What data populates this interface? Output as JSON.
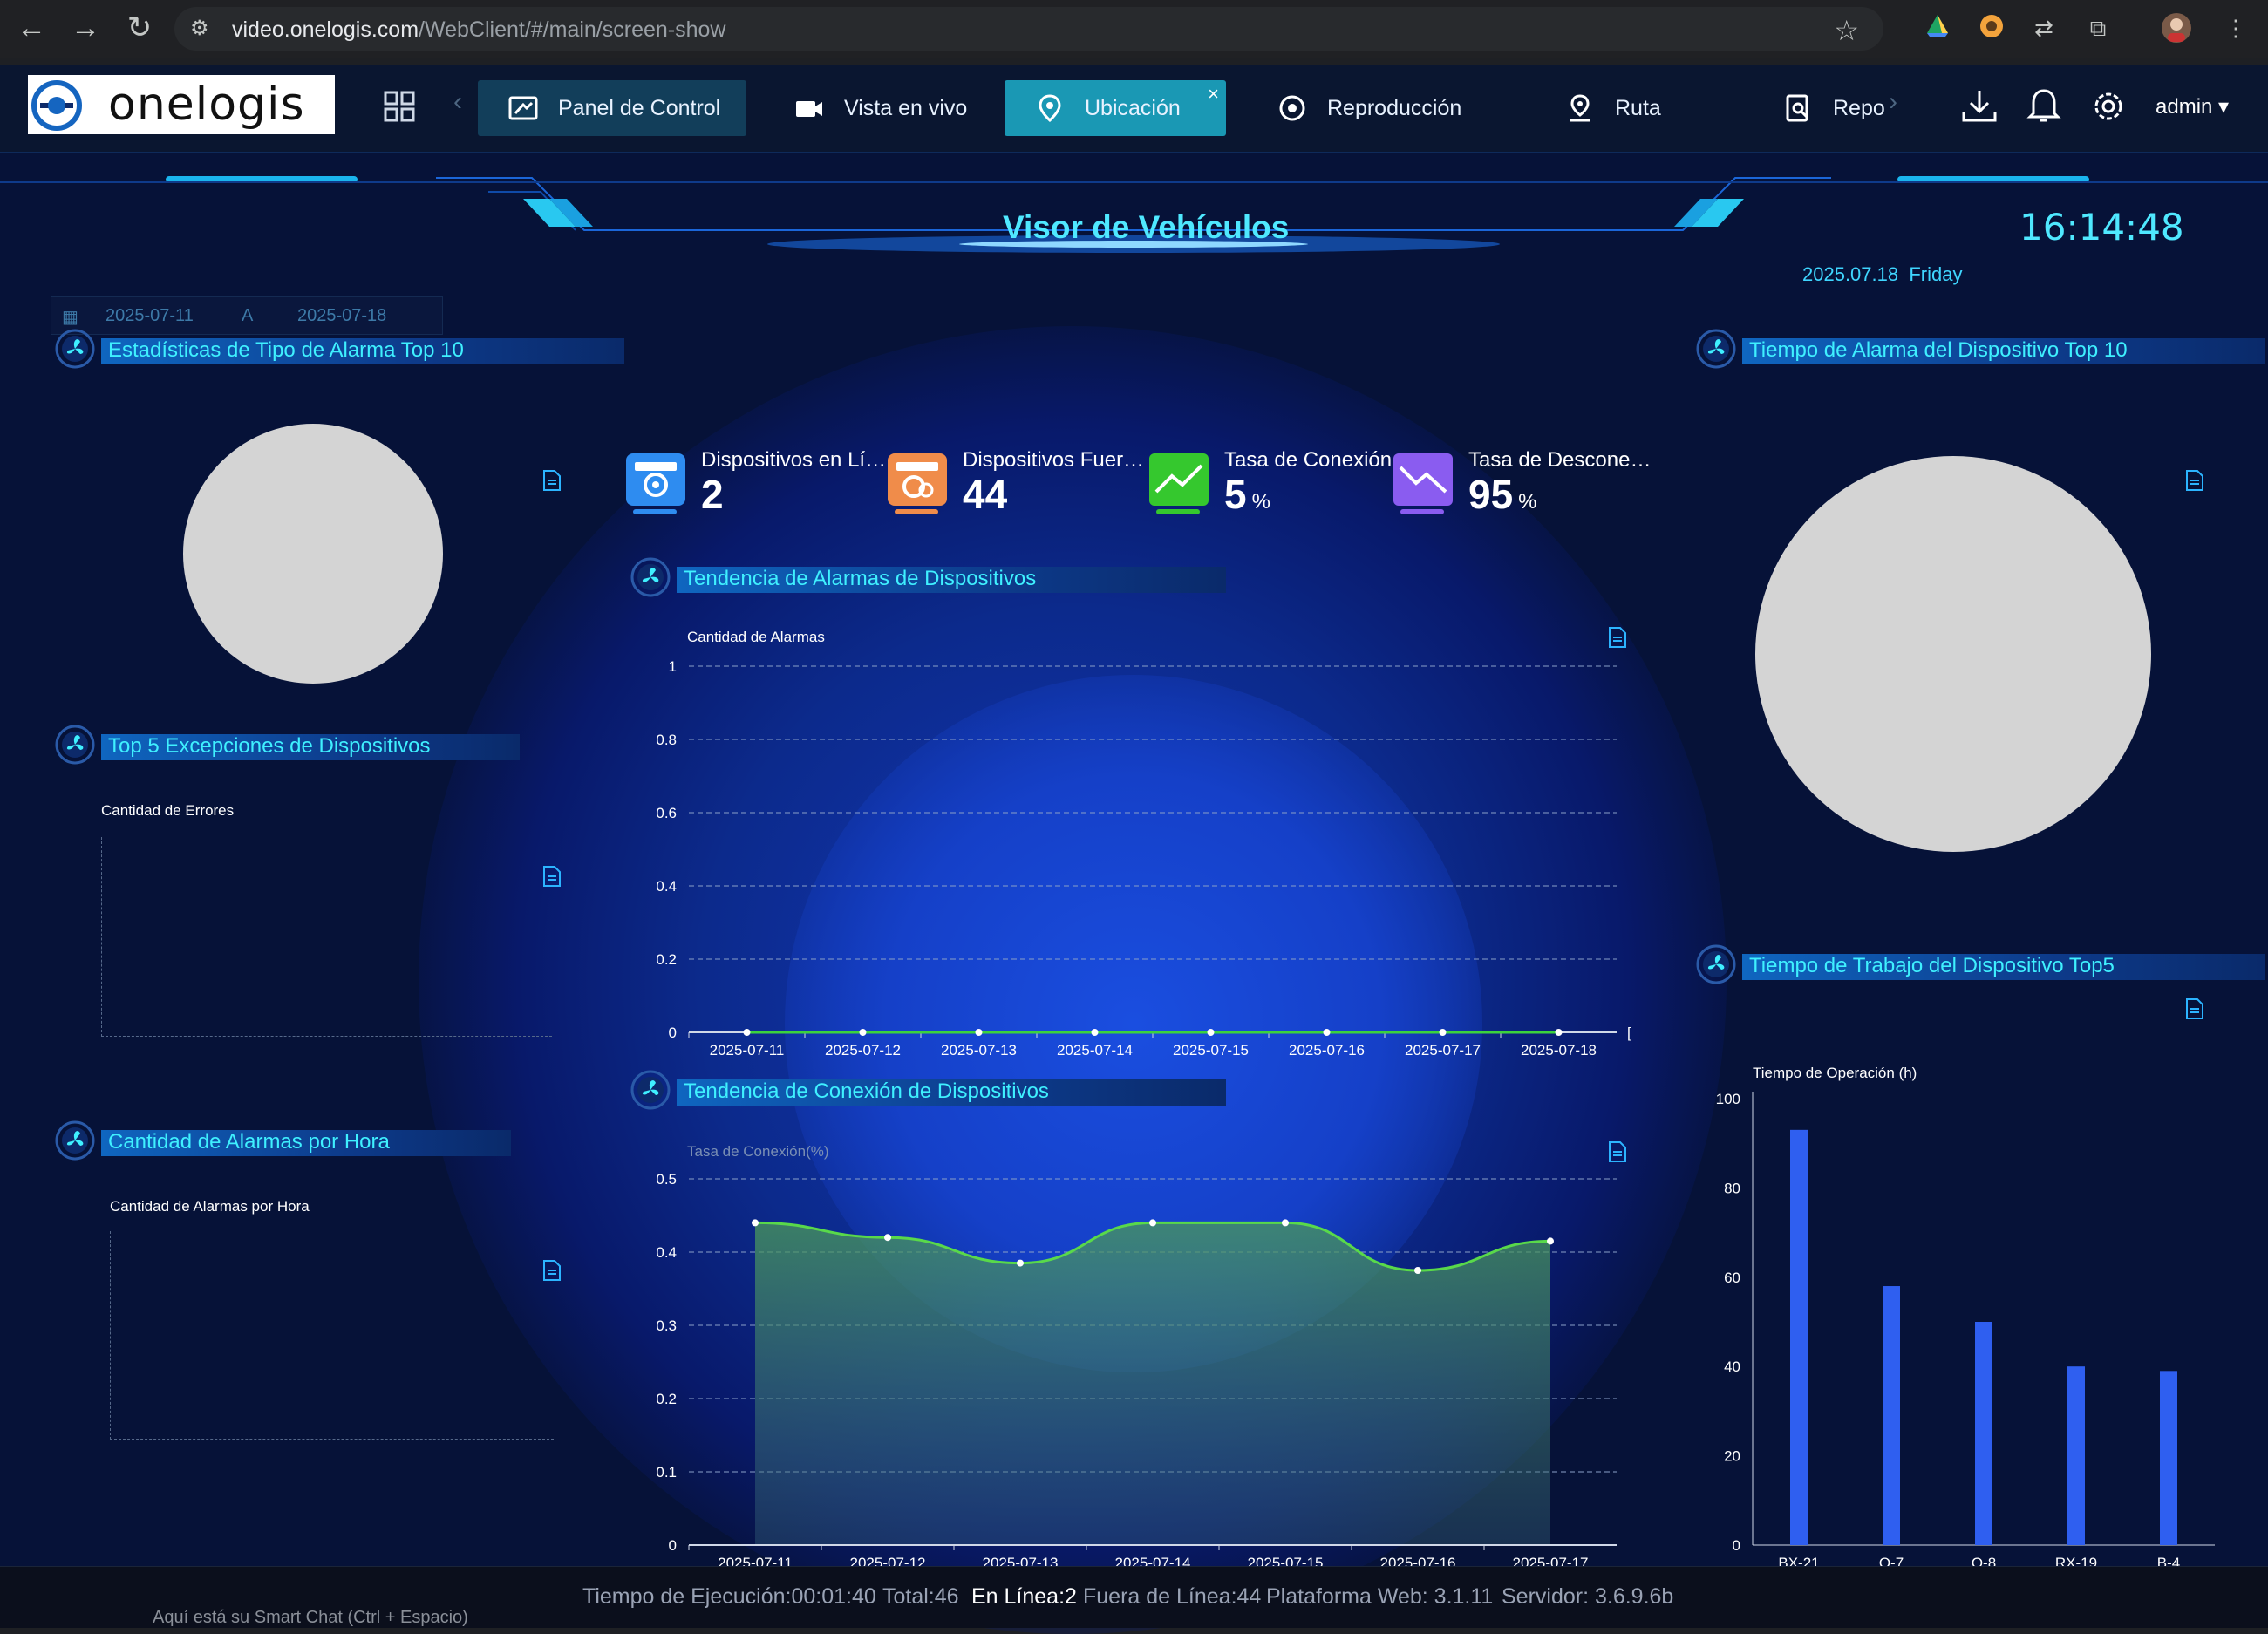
{
  "browser": {
    "url_host": "video.onelogis.com",
    "url_path": "/WebClient/#/main/screen-show",
    "icons": [
      "back-icon",
      "forward-icon",
      "reload-icon",
      "site-info-icon",
      "bookmark-star-icon",
      "extensions-icon",
      "profile-avatar",
      "menu-dots-icon"
    ]
  },
  "brand": {
    "logo_text": "onelogis"
  },
  "nav": {
    "tabs": [
      {
        "label": "Panel de Control",
        "icon": "dashboard-icon"
      },
      {
        "label": "Vista en vivo",
        "icon": "video-camera-icon"
      },
      {
        "label": "Ubicación",
        "icon": "location-pin-icon"
      },
      {
        "label": "Reproducción",
        "icon": "playback-icon"
      },
      {
        "label": "Ruta",
        "icon": "route-icon"
      },
      {
        "label": "Repo",
        "icon": "report-icon"
      }
    ],
    "close_glyph": "×",
    "user": "admin"
  },
  "header": {
    "title": "Visor de Vehículos",
    "time": "16:14:48",
    "date": "2025.07.18",
    "weekday": "Friday",
    "range_start": "2025-07-11",
    "range_sep": "A",
    "range_end": "2025-07-18"
  },
  "sections": {
    "alarm_type_top10": "Estadísticas de Tipo de Alarma Top 10",
    "top5_exceptions": "Top 5 Excepciones de Dispositivos",
    "top5_exceptions_axis": "Cantidad de Errores",
    "alarms_per_hour": "Cantidad de Alarmas por Hora",
    "alarms_per_hour_axis": "Cantidad de Alarmas por Hora",
    "alarm_trend": "Tendencia de Alarmas de Dispositivos",
    "connection_trend": "Tendencia de Conexión de Dispositivos",
    "alarm_time_top10": "Tiempo de Alarma del Dispositivo Top 10",
    "work_time_top5": "Tiempo de Trabajo del Dispositivo Top5"
  },
  "kpis": [
    {
      "label": "Dispositivos en Lí…",
      "value": "2",
      "unit": "",
      "color": "#2e8cf0"
    },
    {
      "label": "Dispositivos Fuer…",
      "value": "44",
      "unit": "",
      "color": "#f08c4a"
    },
    {
      "label": "Tasa de Conexión",
      "value": "5",
      "unit": "%",
      "color": "#35c82e"
    },
    {
      "label": "Tasa de Descone…",
      "value": "95",
      "unit": "%",
      "color": "#8a5cf0"
    }
  ],
  "chart_data": [
    {
      "type": "line",
      "ylabel": "Cantidad de Alarmas",
      "x": [
        "2025-07-11",
        "2025-07-12",
        "2025-07-13",
        "2025-07-14",
        "2025-07-15",
        "2025-07-16",
        "2025-07-17",
        "2025-07-18"
      ],
      "series": [
        {
          "values": [
            0,
            0,
            0,
            0,
            0,
            0,
            0,
            0
          ],
          "color": "#3cd33c"
        }
      ],
      "ylim": [
        0,
        1
      ],
      "yticks": [
        "0",
        "0.2",
        "0.4",
        "0.6",
        "0.8",
        "1"
      ],
      "grid": true,
      "trailing_tick": "["
    },
    {
      "type": "area",
      "ylabel": "Tasa de Conexión(%)",
      "x": [
        "2025-07-11",
        "2025-07-12",
        "2025-07-13",
        "2025-07-14",
        "2025-07-15",
        "2025-07-16",
        "2025-07-17"
      ],
      "series": [
        {
          "values": [
            0.44,
            0.42,
            0.385,
            0.44,
            0.44,
            0.375,
            0.415
          ],
          "color": "#59d94a"
        }
      ],
      "ylim": [
        0,
        0.5
      ],
      "yticks": [
        "0",
        "0.1",
        "0.2",
        "0.3",
        "0.4",
        "0.5"
      ],
      "grid": true
    },
    {
      "type": "bar",
      "ylabel": "Tiempo de Operación (h)",
      "categories": [
        "BX-21",
        "Q-7",
        "Q-8",
        "RX-19",
        "B-4"
      ],
      "values": [
        93,
        58,
        50,
        40,
        39
      ],
      "ylim": [
        0,
        100
      ],
      "yticks": [
        "0",
        "20",
        "40",
        "60",
        "80",
        "100"
      ],
      "color": "#2f5ff0"
    }
  ],
  "footer": {
    "runtime": "Tiempo de Ejecución:00:01:40",
    "total": "Total:46",
    "online": "En Línea:2",
    "offline": "Fuera de Línea:44",
    "web": "Plataforma Web: 3.1.11",
    "server": "Servidor: 3.6.9.6b"
  },
  "taskbar_hint": "Aquí está su Smart Chat (Ctrl + Espacio)"
}
